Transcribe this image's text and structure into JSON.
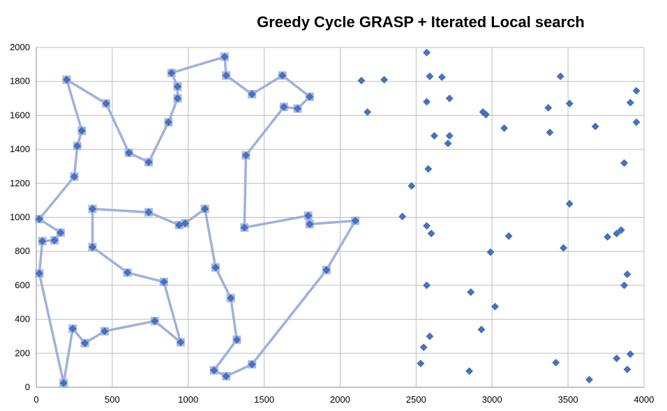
{
  "chart_data": {
    "type": "scatter",
    "title": "Greedy Cycle GRASP + Iterated Local search",
    "xlabel": "",
    "ylabel": "",
    "xlim": [
      0,
      4000
    ],
    "ylim": [
      0,
      2000
    ],
    "xticks": [
      0,
      500,
      1000,
      1500,
      2000,
      2500,
      3000,
      3500,
      4000
    ],
    "yticks": [
      0,
      200,
      400,
      600,
      800,
      1000,
      1200,
      1400,
      1600,
      1800,
      2000
    ],
    "grid": true,
    "legend": "none",
    "colors": {
      "points": "#4472C4",
      "path": "#9FB0DE",
      "grid": "#BDBDBD"
    },
    "series": [
      {
        "kind": "line",
        "closed": true,
        "points": [
          [
            200,
            1810
          ],
          [
            460,
            1670
          ],
          [
            610,
            1380
          ],
          [
            740,
            1325
          ],
          [
            870,
            1560
          ],
          [
            930,
            1700
          ],
          [
            930,
            1770
          ],
          [
            890,
            1850
          ],
          [
            1240,
            1945
          ],
          [
            1250,
            1835
          ],
          [
            1420,
            1725
          ],
          [
            1620,
            1835
          ],
          [
            1800,
            1710
          ],
          [
            1720,
            1640
          ],
          [
            1630,
            1650
          ],
          [
            1380,
            1365
          ],
          [
            1370,
            940
          ],
          [
            1790,
            1010
          ],
          [
            1800,
            960
          ],
          [
            2100,
            980
          ],
          [
            1910,
            690
          ],
          [
            1420,
            135
          ],
          [
            1250,
            65
          ],
          [
            1170,
            100
          ],
          [
            1320,
            280
          ],
          [
            1280,
            525
          ],
          [
            1180,
            705
          ],
          [
            1110,
            1050
          ],
          [
            980,
            965
          ],
          [
            940,
            955
          ],
          [
            740,
            1030
          ],
          [
            370,
            1050
          ],
          [
            370,
            825
          ],
          [
            600,
            675
          ],
          [
            840,
            620
          ],
          [
            950,
            265
          ],
          [
            780,
            390
          ],
          [
            450,
            330
          ],
          [
            320,
            260
          ],
          [
            240,
            345
          ],
          [
            180,
            25
          ],
          [
            20,
            670
          ],
          [
            40,
            860
          ],
          [
            120,
            865
          ],
          [
            160,
            910
          ],
          [
            20,
            990
          ],
          [
            250,
            1240
          ],
          [
            270,
            1420
          ],
          [
            300,
            1510
          ]
        ]
      },
      {
        "kind": "scatter",
        "points": [
          [
            2140,
            1805
          ],
          [
            2290,
            1810
          ],
          [
            2180,
            1620
          ],
          [
            2570,
            1970
          ],
          [
            2590,
            1830
          ],
          [
            2670,
            1825
          ],
          [
            2570,
            1680
          ],
          [
            2720,
            1700
          ],
          [
            2620,
            1480
          ],
          [
            2720,
            1480
          ],
          [
            2710,
            1435
          ],
          [
            2940,
            1620
          ],
          [
            2960,
            1605
          ],
          [
            3080,
            1525
          ],
          [
            3370,
            1645
          ],
          [
            3450,
            1830
          ],
          [
            3510,
            1670
          ],
          [
            3380,
            1500
          ],
          [
            3680,
            1535
          ],
          [
            3910,
            1675
          ],
          [
            3950,
            1745
          ],
          [
            3950,
            1560
          ],
          [
            3870,
            1320
          ],
          [
            2580,
            1285
          ],
          [
            2470,
            1185
          ],
          [
            2410,
            1005
          ],
          [
            2570,
            950
          ],
          [
            2600,
            905
          ],
          [
            3110,
            890
          ],
          [
            2990,
            795
          ],
          [
            3510,
            1080
          ],
          [
            3470,
            820
          ],
          [
            3760,
            885
          ],
          [
            3820,
            905
          ],
          [
            3850,
            925
          ],
          [
            3890,
            665
          ],
          [
            3870,
            600
          ],
          [
            2570,
            600
          ],
          [
            2860,
            560
          ],
          [
            3020,
            475
          ],
          [
            2930,
            340
          ],
          [
            2590,
            300
          ],
          [
            2550,
            235
          ],
          [
            2530,
            140
          ],
          [
            2850,
            95
          ],
          [
            3420,
            145
          ],
          [
            3820,
            170
          ],
          [
            3910,
            195
          ],
          [
            3890,
            105
          ],
          [
            3640,
            45
          ]
        ]
      }
    ]
  }
}
